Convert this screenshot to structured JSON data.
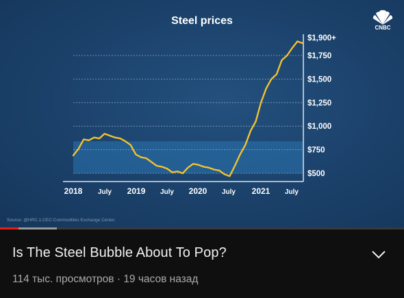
{
  "video": {
    "title": "Is The Steel Bubble About To Pop?",
    "views": "114 тыс. просмотров",
    "separator": "·",
    "time_ago": "19 часов назад",
    "progress_played": 0.045,
    "progress_buffered": 0.14
  },
  "player": {
    "logo_text": "CNBC",
    "logo_icon": "cnbc-peacock-icon",
    "source_text": "Source: @HRC.1:CEC:Commodities Exchange Center"
  },
  "expand_icon": "chevron-down-icon",
  "colors": {
    "background": "#0f0f0f",
    "chart_bg": "#1b416a",
    "line": "#f2c230",
    "band": "#2a75b0",
    "progress_red": "#e62117"
  },
  "chart_data": {
    "type": "line",
    "title": "Steel prices",
    "xlabel": "",
    "ylabel": "",
    "x_ticks": [
      "2018",
      "July",
      "2019",
      "July",
      "2020",
      "July",
      "2021",
      "July"
    ],
    "y_ticks": [
      "$500",
      "$750",
      "$1,000",
      "$1,250",
      "$1,500",
      "$1,750",
      "$1,900+"
    ],
    "ylim": [
      450,
      1950
    ],
    "band": [
      500,
      840
    ],
    "series": [
      {
        "x": [
          "2018-01",
          "2018-02",
          "2018-03",
          "2018-04",
          "2018-05",
          "2018-06",
          "2018-07",
          "2018-08",
          "2018-09",
          "2018-10",
          "2018-11",
          "2018-12",
          "2019-01",
          "2019-02",
          "2019-03",
          "2019-04",
          "2019-05",
          "2019-06",
          "2019-07",
          "2019-08",
          "2019-09",
          "2019-10",
          "2019-11",
          "2019-12",
          "2020-01",
          "2020-02",
          "2020-03",
          "2020-04",
          "2020-05",
          "2020-06",
          "2020-07",
          "2020-08",
          "2020-09",
          "2020-10",
          "2020-11",
          "2020-12",
          "2021-01",
          "2021-02",
          "2021-03",
          "2021-04",
          "2021-05",
          "2021-06",
          "2021-07",
          "2021-08",
          "2021-09"
        ],
        "values": [
          690,
          760,
          860,
          850,
          880,
          870,
          920,
          900,
          880,
          870,
          840,
          800,
          700,
          670,
          660,
          620,
          580,
          570,
          550,
          510,
          520,
          500,
          560,
          600,
          590,
          570,
          560,
          540,
          530,
          490,
          470,
          580,
          700,
          800,
          950,
          1050,
          1250,
          1400,
          1500,
          1550,
          1700,
          1750,
          1830,
          1900,
          1880
        ]
      }
    ]
  }
}
